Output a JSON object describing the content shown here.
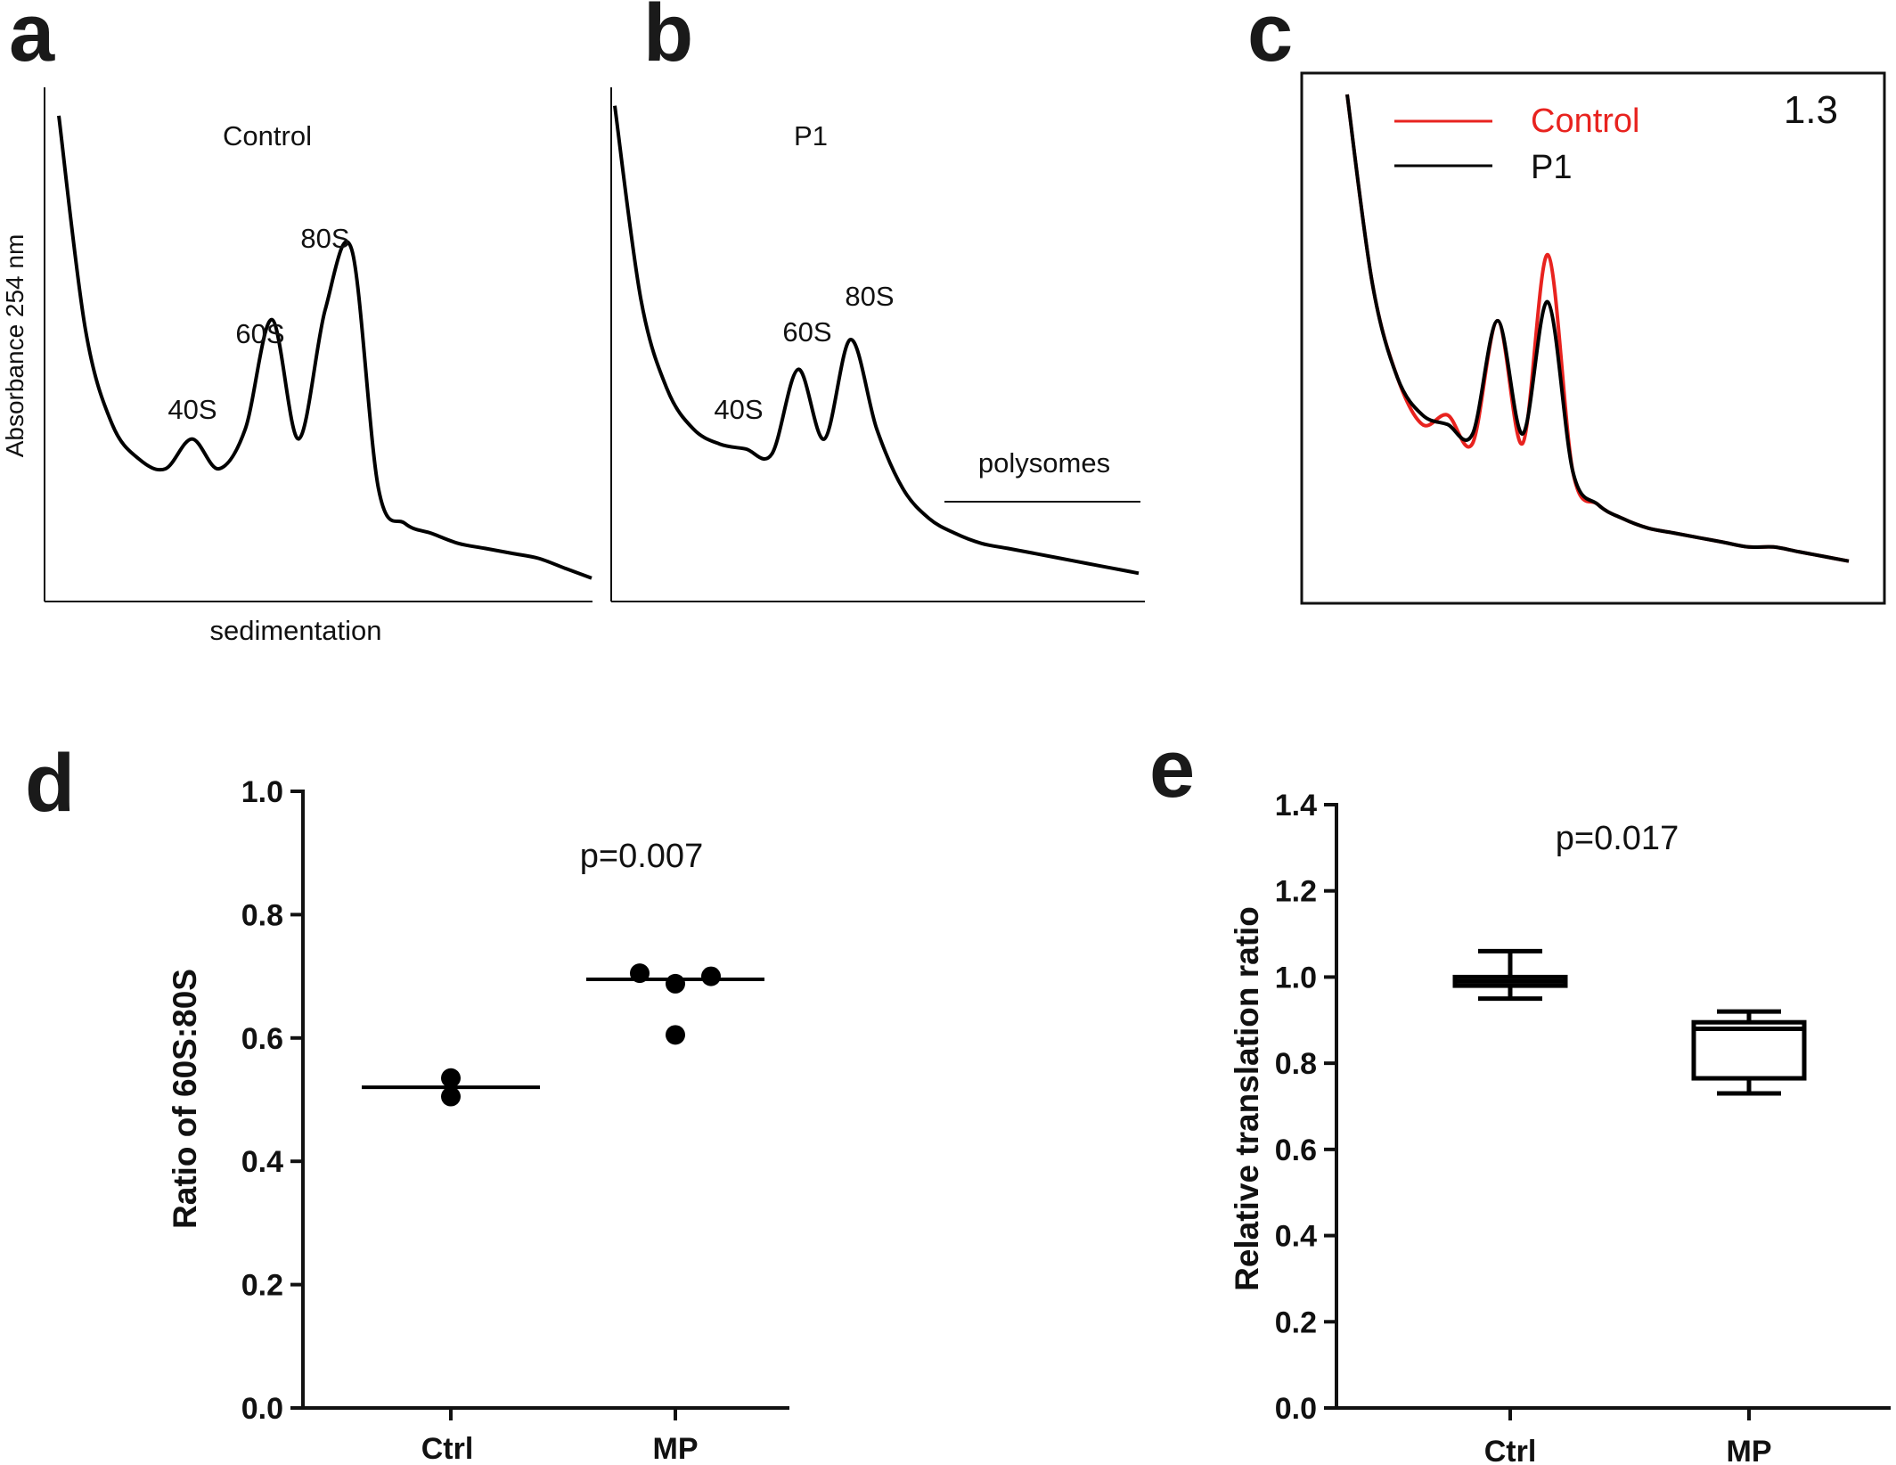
{
  "panels": {
    "a": {
      "letter": "a",
      "label": "Control",
      "ylabel": "Absorbance 254 nm",
      "xlabel": "sedimentation",
      "peaks": {
        "p40": "40S",
        "p60": "60S",
        "p80": "80S"
      }
    },
    "b": {
      "letter": "b",
      "label": "P1",
      "peaks": {
        "p40": "40S",
        "p60": "60S",
        "p80": "80S"
      },
      "region_label": "polysomes"
    },
    "c": {
      "letter": "c",
      "corner_value": "1.3",
      "legend": [
        "Control",
        "P1"
      ]
    },
    "d": {
      "letter": "d",
      "ylabel": "Ratio of 60S:80S",
      "pvalue": "p=0.007",
      "yticks": [
        "0.0",
        "0.2",
        "0.4",
        "0.6",
        "0.8",
        "1.0"
      ],
      "categories": [
        "Ctrl",
        "MP"
      ]
    },
    "e": {
      "letter": "e",
      "ylabel": "Relative translation ratio",
      "pvalue": "p=0.017",
      "yticks": [
        "0.0",
        "0.2",
        "0.4",
        "0.6",
        "0.8",
        "1.0",
        "1.2",
        "1.4"
      ],
      "categories": [
        "Ctrl",
        "MP"
      ]
    }
  },
  "colors": {
    "control": "#e8231f",
    "p1": "#000000",
    "axis": "#111111"
  },
  "chart_data": [
    {
      "type": "line",
      "title": "Control",
      "xlabel": "sedimentation",
      "ylabel": "Absorbance 254 nm",
      "x": [
        0,
        5,
        10,
        15,
        20,
        25,
        30,
        35,
        40,
        45,
        50,
        55,
        60,
        65,
        70,
        75,
        80,
        85,
        90,
        95,
        100
      ],
      "series": [
        {
          "name": "Control",
          "values": [
            95,
            52,
            33,
            26,
            24,
            30,
            24,
            32,
            54,
            30,
            56,
            68,
            20,
            13,
            11,
            9,
            8,
            7,
            6,
            4,
            2
          ]
        }
      ],
      "annotations": [
        "40S",
        "60S",
        "80S"
      ]
    },
    {
      "type": "line",
      "title": "P1",
      "x": [
        0,
        5,
        10,
        15,
        20,
        25,
        30,
        35,
        40,
        45,
        50,
        55,
        60,
        65,
        70,
        75,
        80,
        85,
        90,
        95,
        100
      ],
      "series": [
        {
          "name": "P1",
          "values": [
            97,
            58,
            40,
            32,
            29,
            28,
            27,
            44,
            30,
            50,
            32,
            20,
            14,
            11,
            9,
            8,
            7,
            6,
            5,
            4,
            3
          ]
        }
      ],
      "annotations": [
        "40S",
        "60S",
        "80S",
        "polysomes"
      ]
    },
    {
      "type": "line",
      "x": [
        0,
        5,
        10,
        15,
        20,
        25,
        30,
        35,
        40,
        45,
        50,
        55,
        60,
        65,
        70,
        75,
        80,
        85,
        90,
        95,
        100
      ],
      "series": [
        {
          "name": "Control",
          "values": [
            100,
            60,
            40,
            30,
            32,
            26,
            52,
            26,
            66,
            20,
            13,
            10,
            8,
            7,
            6,
            5,
            4,
            4,
            3,
            2,
            1
          ]
        },
        {
          "name": "P1",
          "values": [
            100,
            60,
            40,
            32,
            30,
            28,
            52,
            28,
            56,
            20,
            13,
            10,
            8,
            7,
            6,
            5,
            4,
            4,
            3,
            2,
            1
          ]
        }
      ],
      "legend": [
        "Control",
        "P1"
      ],
      "annotations": [
        "1.3"
      ]
    },
    {
      "type": "scatter",
      "ylabel": "Ratio of 60S:80S",
      "categories": [
        "Ctrl",
        "MP"
      ],
      "ylim": [
        0,
        1.0
      ],
      "series": [
        {
          "category": "Ctrl",
          "values": [
            0.535,
            0.505
          ],
          "median": 0.52
        },
        {
          "category": "MP",
          "values": [
            0.705,
            0.688,
            0.7,
            0.605
          ],
          "median": 0.695
        }
      ],
      "annotations": [
        "p=0.007"
      ]
    },
    {
      "type": "box",
      "ylabel": "Relative translation ratio",
      "categories": [
        "Ctrl",
        "MP"
      ],
      "ylim": [
        0,
        1.4
      ],
      "boxes": [
        {
          "category": "Ctrl",
          "min": 0.95,
          "q1": 0.98,
          "median": 0.99,
          "q3": 1.0,
          "max": 1.06
        },
        {
          "category": "MP",
          "min": 0.73,
          "q1": 0.765,
          "median": 0.88,
          "q3": 0.895,
          "max": 0.92
        }
      ],
      "annotations": [
        "p=0.017"
      ]
    }
  ]
}
